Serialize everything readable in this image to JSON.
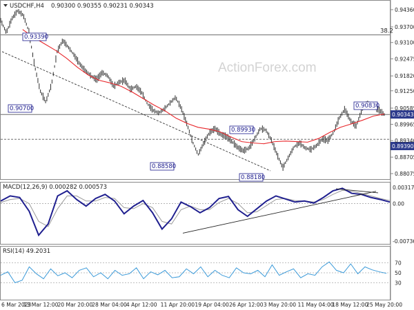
{
  "header": {
    "symbol": "USDCHF,H4",
    "ohlc": "0.90300 0.90355 0.90231 0.90343"
  },
  "watermark": "ActionForex.com",
  "fib_label": "38.2",
  "current_price": "0.90343",
  "macd_title": "MACD(12,26,9) 0.000282 0.000573",
  "rsi_title": "RSI(14) 49.2031",
  "colors": {
    "price": "#2b2b2b",
    "ma": "#e8262a",
    "macd": "#1f1f8f",
    "signal": "#9a9a9a",
    "rsi": "#3b9ad9",
    "label_border": "#1a1a8c",
    "tag_bg": "#2c3a8c"
  },
  "chart_data": [
    {
      "type": "line",
      "panel": "price",
      "title": "USDCHF,H4",
      "y_ticks": [
        "0.94360",
        "0.93700",
        "0.93100",
        "0.92475",
        "0.91820",
        "0.91250",
        "0.90585",
        "0.89965",
        "0.89340",
        "0.88705",
        "0.88075"
      ],
      "ylim": [
        0.88075,
        0.9436
      ],
      "x_ticks": [
        "6 Mar 2023",
        "13 Mar 12:00",
        "20 Mar 20:00",
        "28 Mar 04:00",
        "4 Apr 12:00",
        "11 Apr 20:00",
        "19 Apr 04:00",
        "26 Apr 12:00",
        "3 May 20:00",
        "11 May 04:00",
        "18 May 12:00",
        "25 May 20:00"
      ],
      "annotations": [
        "0.93390",
        "0.90700",
        "0.88580",
        "0.89930",
        "0.88180",
        "0.90830",
        "0.89390"
      ],
      "horizontal_levels": [
        {
          "value": 0.9339,
          "style": "solid",
          "label": "38.2"
        },
        {
          "value": 0.9034,
          "style": "solid"
        },
        {
          "value": 0.8939,
          "style": "dashed"
        }
      ],
      "trendline": {
        "from": {
          "x": "6 Mar 2023",
          "y": 0.9275
        },
        "to": {
          "x": "3 May 20:00",
          "y": 0.8818
        }
      },
      "series": [
        {
          "values": [
            0.9395,
            0.9348,
            0.9402,
            0.9432,
            0.9415,
            0.9352,
            0.9222,
            0.9125,
            0.9082,
            0.9148,
            0.9275,
            0.9318,
            0.9292,
            0.9262,
            0.9228,
            0.9202,
            0.9182,
            0.9168,
            0.9195,
            0.9182,
            0.9142,
            0.9158,
            0.9165,
            0.913,
            0.9142,
            0.9118,
            0.9075,
            0.905,
            0.904,
            0.9055,
            0.9078,
            0.91,
            0.9058,
            0.8998,
            0.893,
            0.888,
            0.8925,
            0.8965,
            0.898,
            0.8958,
            0.895,
            0.893,
            0.8908,
            0.8895,
            0.8905,
            0.894,
            0.898,
            0.8975,
            0.8935,
            0.888,
            0.883,
            0.887,
            0.891,
            0.8925,
            0.8905,
            0.89,
            0.8915,
            0.894,
            0.8935,
            0.8965,
            0.902,
            0.9055,
            0.901,
            0.899,
            0.905,
            0.9078,
            0.9065,
            0.9052,
            0.9034
          ]
        },
        {
          "name": "",
          "values": [
            0.936,
            0.933,
            0.9305,
            0.928,
            0.925,
            0.9215,
            0.9185,
            0.9165,
            0.9155,
            0.9142,
            0.912,
            0.9095,
            0.907,
            0.9048,
            0.902,
            0.9,
            0.8985,
            0.8978,
            0.8968,
            0.8948,
            0.893,
            0.8925,
            0.8922,
            0.893,
            0.8932,
            0.893,
            0.8928,
            0.8942,
            0.8965,
            0.8985,
            0.8998,
            0.9012,
            0.9028,
            0.9036
          ]
        }
      ]
    },
    {
      "type": "line",
      "panel": "macd",
      "title": "MACD(12,26,9) 0.000282 0.000573",
      "y_ticks": [
        "0.003176",
        "0.00",
        "-0.007361"
      ],
      "ylim": [
        -0.007361,
        0.003176
      ],
      "trendline": {
        "from": {
          "x": "11 Apr 20:00",
          "y": -0.0058
        },
        "to": {
          "x": "25 May 20:00",
          "y": 0.0024
        }
      },
      "trendline2": {
        "from": {
          "x": "18 May 12:00",
          "y": 0.0029
        },
        "to": {
          "x": "25 May 20:00",
          "y": 0.0021
        }
      },
      "series": [
        {
          "name": "MACD",
          "values": [
            0.0005,
            0.0015,
            0.0012,
            -0.0015,
            -0.0062,
            -0.004,
            0.0015,
            0.0025,
            0.0008,
            -0.0005,
            0.001,
            0.0018,
            0.0005,
            -0.002,
            -0.0005,
            0.0006,
            -0.0018,
            -0.005,
            -0.003,
            0.0003,
            -0.0006,
            -0.0018,
            -0.0008,
            0.001,
            0.0014,
            -0.0012,
            -0.0025,
            -0.001,
            0.0005,
            0.0015,
            0.0009,
            0.0003,
            0.0005,
            0.0001,
            0.0012,
            0.0025,
            0.003,
            0.002,
            0.0018,
            0.0012,
            0.0008,
            0.0003
          ]
        },
        {
          "name": "Signal",
          "values": [
            0.0002,
            0.0008,
            0.001,
            0.0,
            -0.0035,
            -0.0045,
            -0.001,
            0.0015,
            0.0015,
            0.0005,
            0.0005,
            0.0012,
            0.001,
            -0.0008,
            -0.001,
            0.0,
            -0.0008,
            -0.0035,
            -0.004,
            -0.0012,
            -0.0005,
            -0.0012,
            -0.0012,
            0.0002,
            0.001,
            0.0,
            -0.0018,
            -0.0016,
            -0.0004,
            0.0008,
            0.001,
            0.0006,
            0.0005,
            0.0003,
            0.0008,
            0.0018,
            0.0026,
            0.0024,
            0.002,
            0.0015,
            0.001,
            0.0006
          ]
        }
      ]
    },
    {
      "type": "line",
      "panel": "rsi",
      "title": "RSI(14) 49.2031",
      "y_ticks": [
        "70",
        "50",
        "30"
      ],
      "ylim": [
        0,
        100
      ],
      "series": [
        {
          "name": "RSI(14)",
          "values": [
            45,
            52,
            30,
            35,
            62,
            48,
            38,
            58,
            44,
            50,
            40,
            55,
            60,
            42,
            50,
            38,
            55,
            45,
            48,
            60,
            38,
            52,
            46,
            55,
            40,
            42,
            58,
            48,
            62,
            42,
            55,
            45,
            40,
            60,
            50,
            48,
            55,
            42,
            66,
            45,
            52,
            58,
            40,
            48,
            45,
            62,
            72,
            55,
            50,
            68,
            48,
            62,
            56,
            52,
            49
          ]
        }
      ]
    }
  ]
}
